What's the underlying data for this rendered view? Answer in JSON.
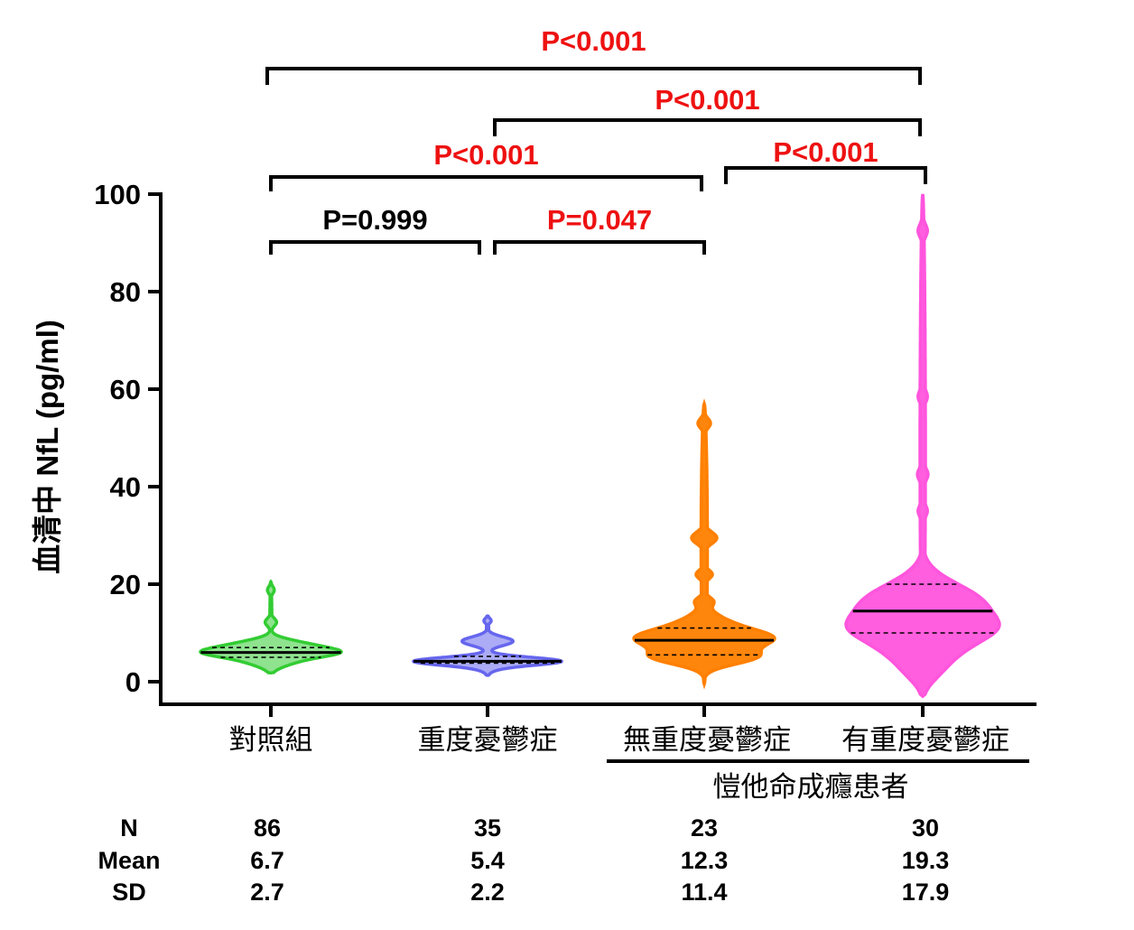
{
  "chart_data": {
    "type": "violin",
    "ylabel": "血清中 NfL (pg/ml)",
    "ylim": [
      0,
      100
    ],
    "yticks": [
      "0",
      "20",
      "40",
      "60",
      "80",
      "100"
    ],
    "categories": [
      "對照組",
      "重度憂鬱症",
      "無重度憂鬱症",
      "有重度憂鬱症"
    ],
    "group_label": "愷他命成癮患者",
    "series": [
      {
        "name": "對照組",
        "color": "#33cc33",
        "median": 6.0,
        "q1": 5.0,
        "q3": 7.0,
        "min": 1.8,
        "max": 20.5
      },
      {
        "name": "重度憂鬱症",
        "color": "#6666ee",
        "median": 4.2,
        "q1": 3.8,
        "q3": 5.2,
        "min": 1.3,
        "max": 13.5
      },
      {
        "name": "無重度憂鬱症",
        "color": "#ff8000",
        "median": 8.5,
        "q1": 5.5,
        "q3": 11.0,
        "min": -0.5,
        "max": 57.0
      },
      {
        "name": "有重度憂鬱症",
        "color": "#ff55dd",
        "median": 14.5,
        "q1": 10.0,
        "q3": 20.0,
        "min": -3.0,
        "max": 100.0
      }
    ],
    "comparisons": [
      {
        "from": 0,
        "to": 1,
        "label": "P=0.999",
        "color": "#000000"
      },
      {
        "from": 1,
        "to": 2,
        "label": "P=0.047",
        "color": "#ee1111"
      },
      {
        "from": 0,
        "to": 2,
        "label": "P<0.001",
        "color": "#ee1111"
      },
      {
        "from": 2,
        "to": 3,
        "label": "P<0.001",
        "color": "#ee1111"
      },
      {
        "from": 1,
        "to": 3,
        "label": "P<0.001",
        "color": "#ee1111"
      },
      {
        "from": 0,
        "to": 3,
        "label": "P<0.001",
        "color": "#ee1111"
      }
    ],
    "stats": {
      "row_labels": [
        "N",
        "Mean",
        "SD"
      ],
      "N": [
        "86",
        "35",
        "23",
        "30"
      ],
      "Mean": [
        "6.7",
        "5.4",
        "12.3",
        "19.3"
      ],
      "SD": [
        "2.7",
        "2.2",
        "11.4",
        "17.9"
      ]
    }
  }
}
